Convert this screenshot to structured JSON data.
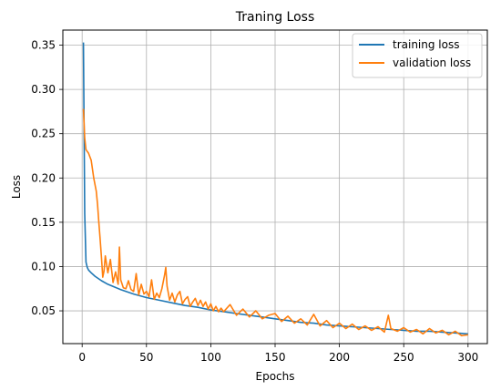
{
  "chart_data": {
    "type": "line",
    "title": "Traning Loss",
    "xlabel": "Epochs",
    "ylabel": "Loss",
    "xlim": [
      -15,
      315
    ],
    "ylim": [
      0.013,
      0.367
    ],
    "xticks": [
      0,
      50,
      100,
      150,
      200,
      250,
      300
    ],
    "yticks": [
      0.05,
      0.1,
      0.15,
      0.2,
      0.25,
      0.3,
      0.35
    ],
    "ytick_labels": [
      "0.05",
      "0.10",
      "0.15",
      "0.20",
      "0.25",
      "0.30",
      "0.35"
    ],
    "grid": true,
    "legend_position": "top-right",
    "series": [
      {
        "name": "training loss",
        "color": "#1f77b4",
        "x": [
          1,
          2,
          3,
          4,
          5,
          7,
          10,
          15,
          20,
          30,
          40,
          50,
          60,
          70,
          80,
          90,
          100,
          110,
          120,
          130,
          140,
          150,
          160,
          170,
          180,
          190,
          200,
          210,
          220,
          230,
          240,
          250,
          260,
          270,
          280,
          290,
          300
        ],
        "y": [
          0.353,
          0.16,
          0.105,
          0.099,
          0.096,
          0.093,
          0.089,
          0.084,
          0.08,
          0.074,
          0.069,
          0.065,
          0.062,
          0.059,
          0.056,
          0.054,
          0.051,
          0.049,
          0.047,
          0.045,
          0.043,
          0.041,
          0.039,
          0.037,
          0.036,
          0.034,
          0.033,
          0.032,
          0.031,
          0.03,
          0.029,
          0.028,
          0.027,
          0.027,
          0.026,
          0.025,
          0.024
        ]
      },
      {
        "name": "validation loss",
        "color": "#ff7f0e",
        "x": [
          1,
          2,
          3,
          5,
          7,
          9,
          11,
          12,
          13,
          14,
          15,
          16,
          17,
          18,
          20,
          22,
          24,
          26,
          28,
          29,
          30,
          32,
          34,
          36,
          38,
          40,
          42,
          44,
          46,
          48,
          50,
          52,
          54,
          56,
          58,
          60,
          62,
          64,
          65,
          66,
          68,
          70,
          72,
          74,
          76,
          78,
          80,
          82,
          84,
          86,
          88,
          90,
          92,
          94,
          96,
          98,
          100,
          102,
          104,
          106,
          108,
          110,
          115,
          120,
          125,
          130,
          135,
          140,
          145,
          150,
          155,
          160,
          165,
          170,
          175,
          180,
          185,
          190,
          195,
          200,
          205,
          210,
          215,
          220,
          225,
          230,
          235,
          238,
          240,
          245,
          250,
          255,
          260,
          265,
          270,
          275,
          280,
          285,
          290,
          295,
          300
        ],
        "y": [
          0.278,
          0.245,
          0.232,
          0.228,
          0.22,
          0.2,
          0.185,
          0.17,
          0.15,
          0.13,
          0.11,
          0.088,
          0.095,
          0.112,
          0.093,
          0.108,
          0.082,
          0.094,
          0.08,
          0.122,
          0.085,
          0.076,
          0.075,
          0.084,
          0.074,
          0.072,
          0.092,
          0.068,
          0.08,
          0.069,
          0.072,
          0.066,
          0.085,
          0.063,
          0.07,
          0.065,
          0.075,
          0.09,
          0.099,
          0.078,
          0.062,
          0.07,
          0.06,
          0.068,
          0.072,
          0.058,
          0.063,
          0.066,
          0.055,
          0.06,
          0.064,
          0.056,
          0.062,
          0.055,
          0.06,
          0.052,
          0.058,
          0.05,
          0.055,
          0.049,
          0.053,
          0.049,
          0.057,
          0.045,
          0.052,
          0.043,
          0.05,
          0.041,
          0.045,
          0.047,
          0.038,
          0.044,
          0.036,
          0.041,
          0.034,
          0.046,
          0.033,
          0.039,
          0.031,
          0.036,
          0.03,
          0.035,
          0.029,
          0.033,
          0.028,
          0.032,
          0.026,
          0.045,
          0.03,
          0.027,
          0.031,
          0.026,
          0.029,
          0.024,
          0.03,
          0.025,
          0.028,
          0.023,
          0.027,
          0.022,
          0.023
        ]
      }
    ]
  }
}
